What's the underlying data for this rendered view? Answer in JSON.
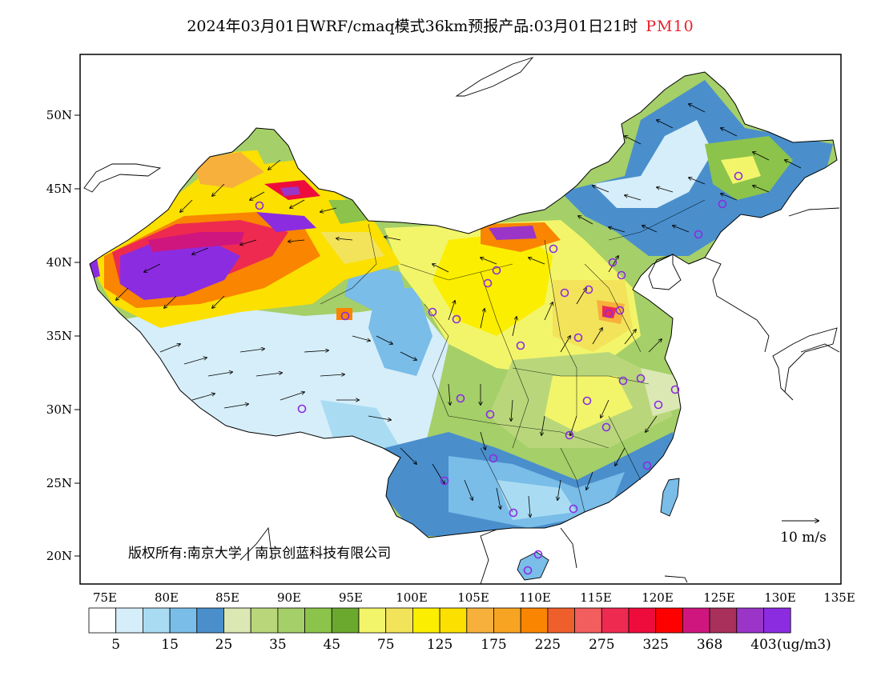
{
  "title": {
    "main": "2024年03月01日WRF/cmaq模式36km预报产品:03月01日21时",
    "variable": "PM10"
  },
  "map": {
    "lat_labels": [
      "50N",
      "45N",
      "40N",
      "35N",
      "30N",
      "25N",
      "20N"
    ],
    "lon_labels": [
      "75E",
      "80E",
      "85E",
      "90E",
      "95E",
      "100E",
      "105E",
      "110E",
      "115E",
      "120E",
      "125E",
      "130E",
      "135E"
    ],
    "wind_reference": "10 m/s",
    "copyright": "版权所有:南京大学 | 南京创蓝科技有限公司"
  },
  "colorbar": {
    "colors": [
      "#ffffff",
      "#d6eef9",
      "#a9dcf3",
      "#79bde8",
      "#4a8fcc",
      "#dbe8b4",
      "#b9d77a",
      "#a5cf68",
      "#8cc34b",
      "#6aa82e",
      "#f2f56a",
      "#f3e35a",
      "#fbee00",
      "#fbe000",
      "#f7b03c",
      "#f8a423",
      "#f98500",
      "#ef5f2c",
      "#f25d5d",
      "#ee2a50",
      "#ee0c3c",
      "#ff0000",
      "#cf167e",
      "#a8305a",
      "#9a35c8",
      "#8c2ce0"
    ],
    "labels": [
      "5",
      "15",
      "25",
      "35",
      "45",
      "75",
      "125",
      "175",
      "225",
      "275",
      "325",
      "368",
      "403"
    ],
    "unit": "(ug/m3)"
  },
  "icons": {
    "site_marker": "city-circle-icon",
    "wind": "wind-barb-arrow-icon"
  }
}
